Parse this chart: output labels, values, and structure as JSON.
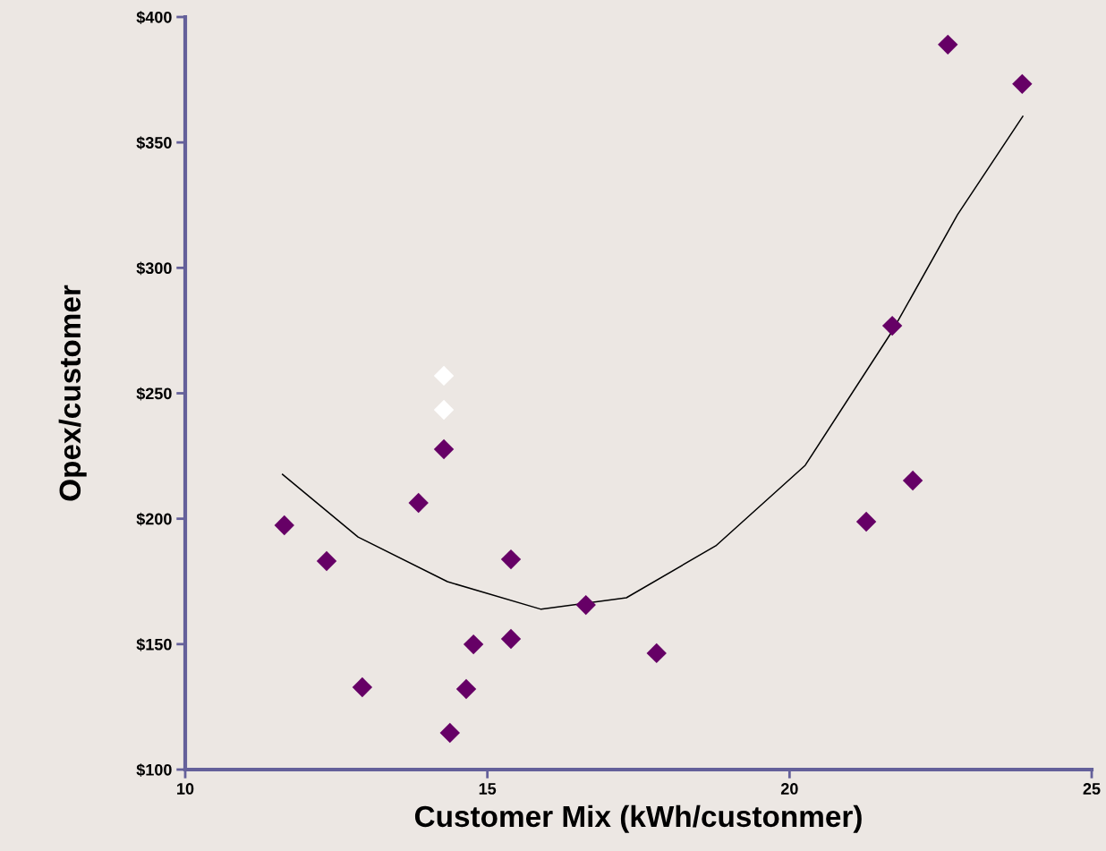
{
  "chart_data": {
    "type": "scatter",
    "xlabel": "Customer Mix (kWh/custonmer)",
    "ylabel": "Opex/customer",
    "xlim": [
      10,
      25
    ],
    "xticks": [
      10,
      15,
      20,
      25
    ],
    "ylim": [
      100,
      400
    ],
    "yticks": [
      {
        "value": 100,
        "label": "$100"
      },
      {
        "value": 150,
        "label": "$150"
      },
      {
        "value": 200,
        "label": "$200"
      },
      {
        "value": 250,
        "label": "$250"
      },
      {
        "value": 300,
        "label": "$300"
      },
      {
        "value": 350,
        "label": "$350"
      },
      {
        "value": 400,
        "label": "$400"
      }
    ],
    "grid": false,
    "marker": "diamond",
    "series": [
      {
        "color": "#660066",
        "x": [
          11.64,
          12.34,
          12.93,
          13.86,
          14.28,
          14.38,
          14.65,
          14.77,
          15.39,
          15.39,
          16.63,
          17.8,
          21.27,
          21.7,
          22.04,
          22.62,
          23.85
        ],
        "values": [
          197.4,
          183.1,
          132.8,
          206.3,
          227.7,
          114.6,
          132.1,
          149.9,
          183.8,
          152.1,
          165.6,
          146.4,
          198.8,
          276.9,
          215.2,
          389.0,
          373.3
        ]
      },
      {
        "color": "#ffffff",
        "x": [
          14.28,
          14.28
        ],
        "values": [
          257.0,
          243.4
        ]
      },
      {
        "type": "line",
        "color": "#000000",
        "marker": "none",
        "x": [
          11.61,
          12.86,
          14.34,
          15.89,
          17.3,
          18.78,
          20.26,
          21.7,
          22.78,
          23.86
        ],
        "values": [
          217.7,
          192.7,
          174.9,
          163.9,
          168.5,
          189.2,
          221.3,
          274.8,
          321.2,
          360.4
        ]
      }
    ]
  }
}
